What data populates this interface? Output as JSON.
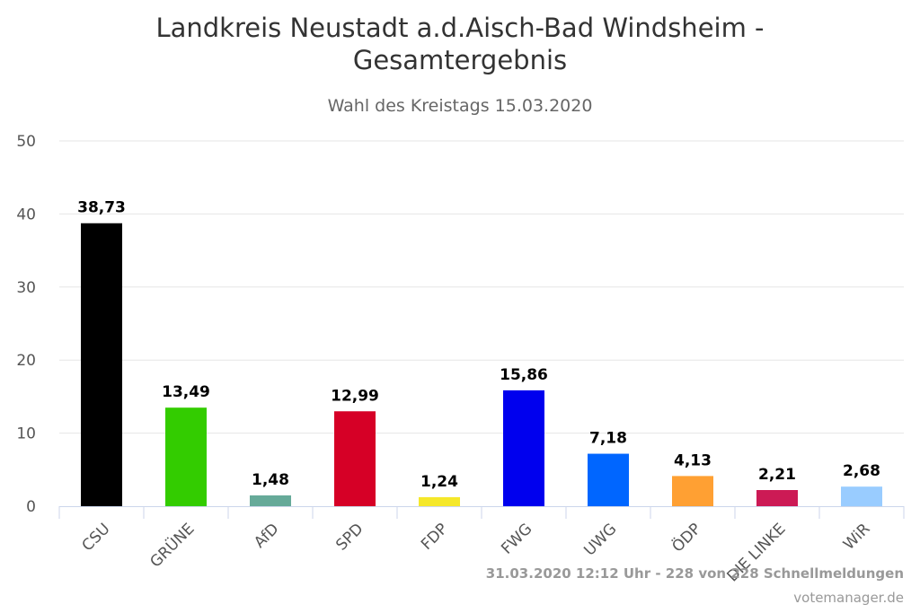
{
  "chart_data": {
    "type": "bar",
    "title_lines": [
      "Landkreis Neustadt a.d.Aisch-Bad Windsheim -",
      "Gesamtergebnis"
    ],
    "subtitle": "Wahl des Kreistags 15.03.2020",
    "categories": [
      "CSU",
      "GRÜNE",
      "AfD",
      "SPD",
      "FDP",
      "FWG",
      "UWG",
      "ÖDP",
      "DIE LINKE",
      "WiR"
    ],
    "values": [
      38.73,
      13.49,
      1.48,
      12.99,
      1.24,
      15.86,
      7.18,
      4.13,
      2.21,
      2.68
    ],
    "value_labels": [
      "38,73",
      "13,49",
      "1,48",
      "12,99",
      "1,24",
      "15,86",
      "7,18",
      "4,13",
      "2,21",
      "2,68"
    ],
    "colors": [
      "#000000",
      "#33cc00",
      "#66aa99",
      "#d60026",
      "#f5e82a",
      "#0000ee",
      "#0066ff",
      "#ffa033",
      "#cc1a55",
      "#99ccff"
    ],
    "ylim": [
      0,
      50
    ],
    "yticks": [
      "0",
      "10",
      "20",
      "30",
      "40",
      "50"
    ],
    "grid": true,
    "xlabel": "",
    "ylabel": ""
  },
  "credits": {
    "line1": "31.03.2020 12:12 Uhr - 228 von 228 Schnellmeldungen",
    "line2": "votemanager.de"
  }
}
